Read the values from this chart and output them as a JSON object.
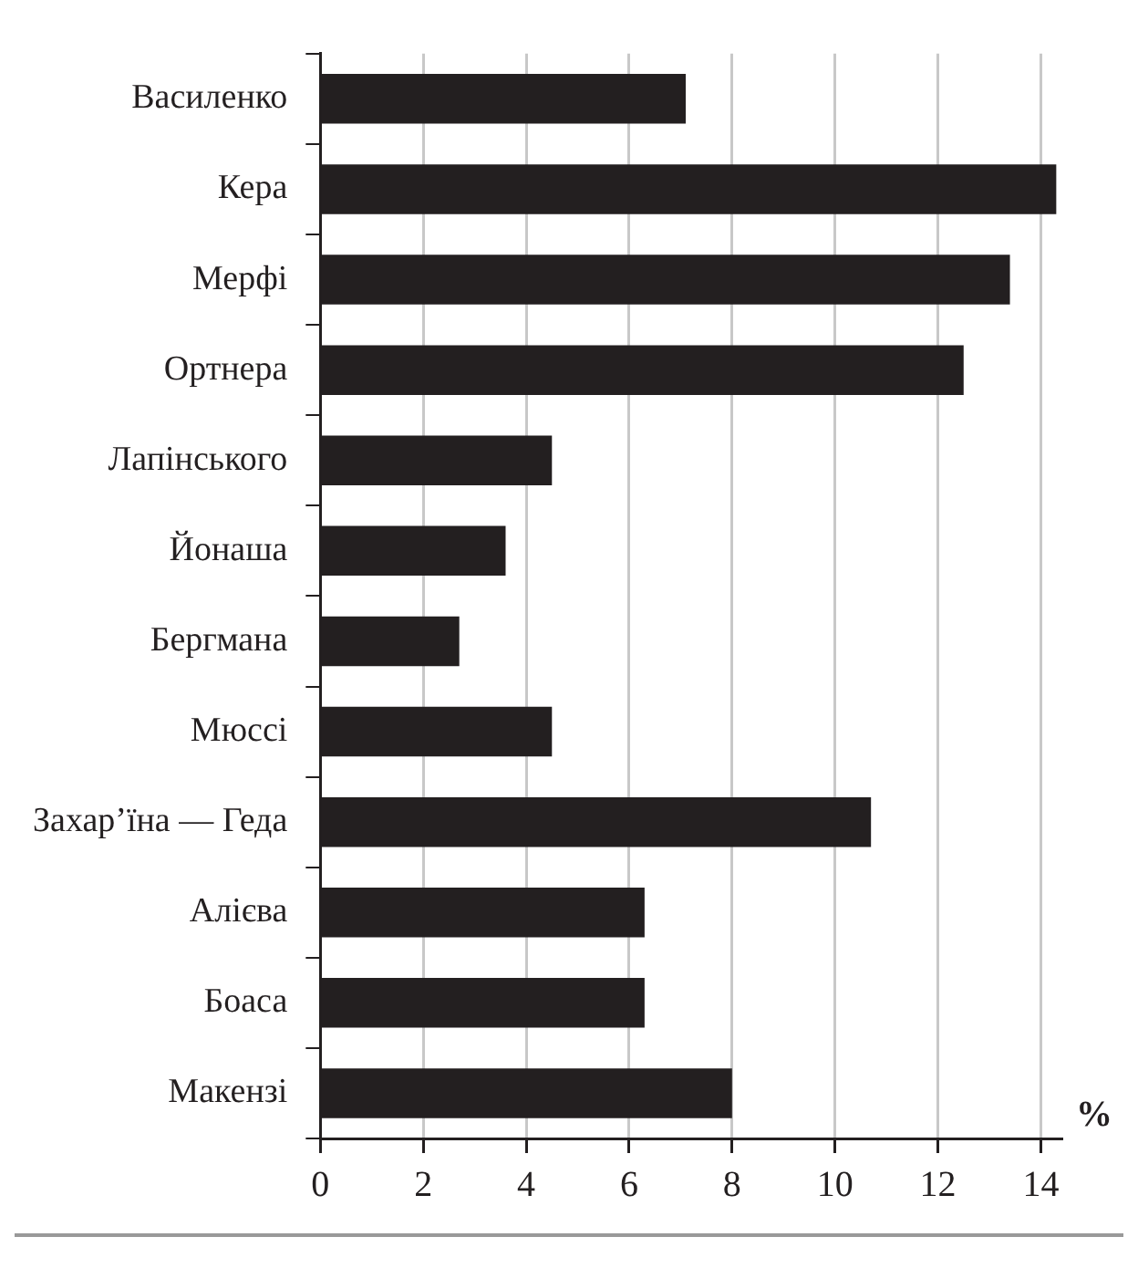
{
  "chart_data": {
    "type": "bar",
    "orientation": "horizontal",
    "xlabel": "%",
    "categories": [
      "Василенко",
      "Кера",
      "Мерфі",
      "Ортнера",
      "Лапінського",
      "Йонаша",
      "Бергмана",
      "Мюссі",
      "Захар’їна — Геда",
      "Алієва",
      "Боаса",
      "Макензі"
    ],
    "values": [
      7.1,
      14.3,
      13.4,
      12.5,
      4.5,
      3.6,
      2.7,
      4.5,
      10.7,
      6.3,
      6.3,
      8.0
    ],
    "color": "#231f20",
    "xlim": [
      0,
      14.4
    ],
    "xticks": [
      0,
      2,
      4,
      6,
      8,
      10,
      12,
      14
    ],
    "grid": "x"
  }
}
